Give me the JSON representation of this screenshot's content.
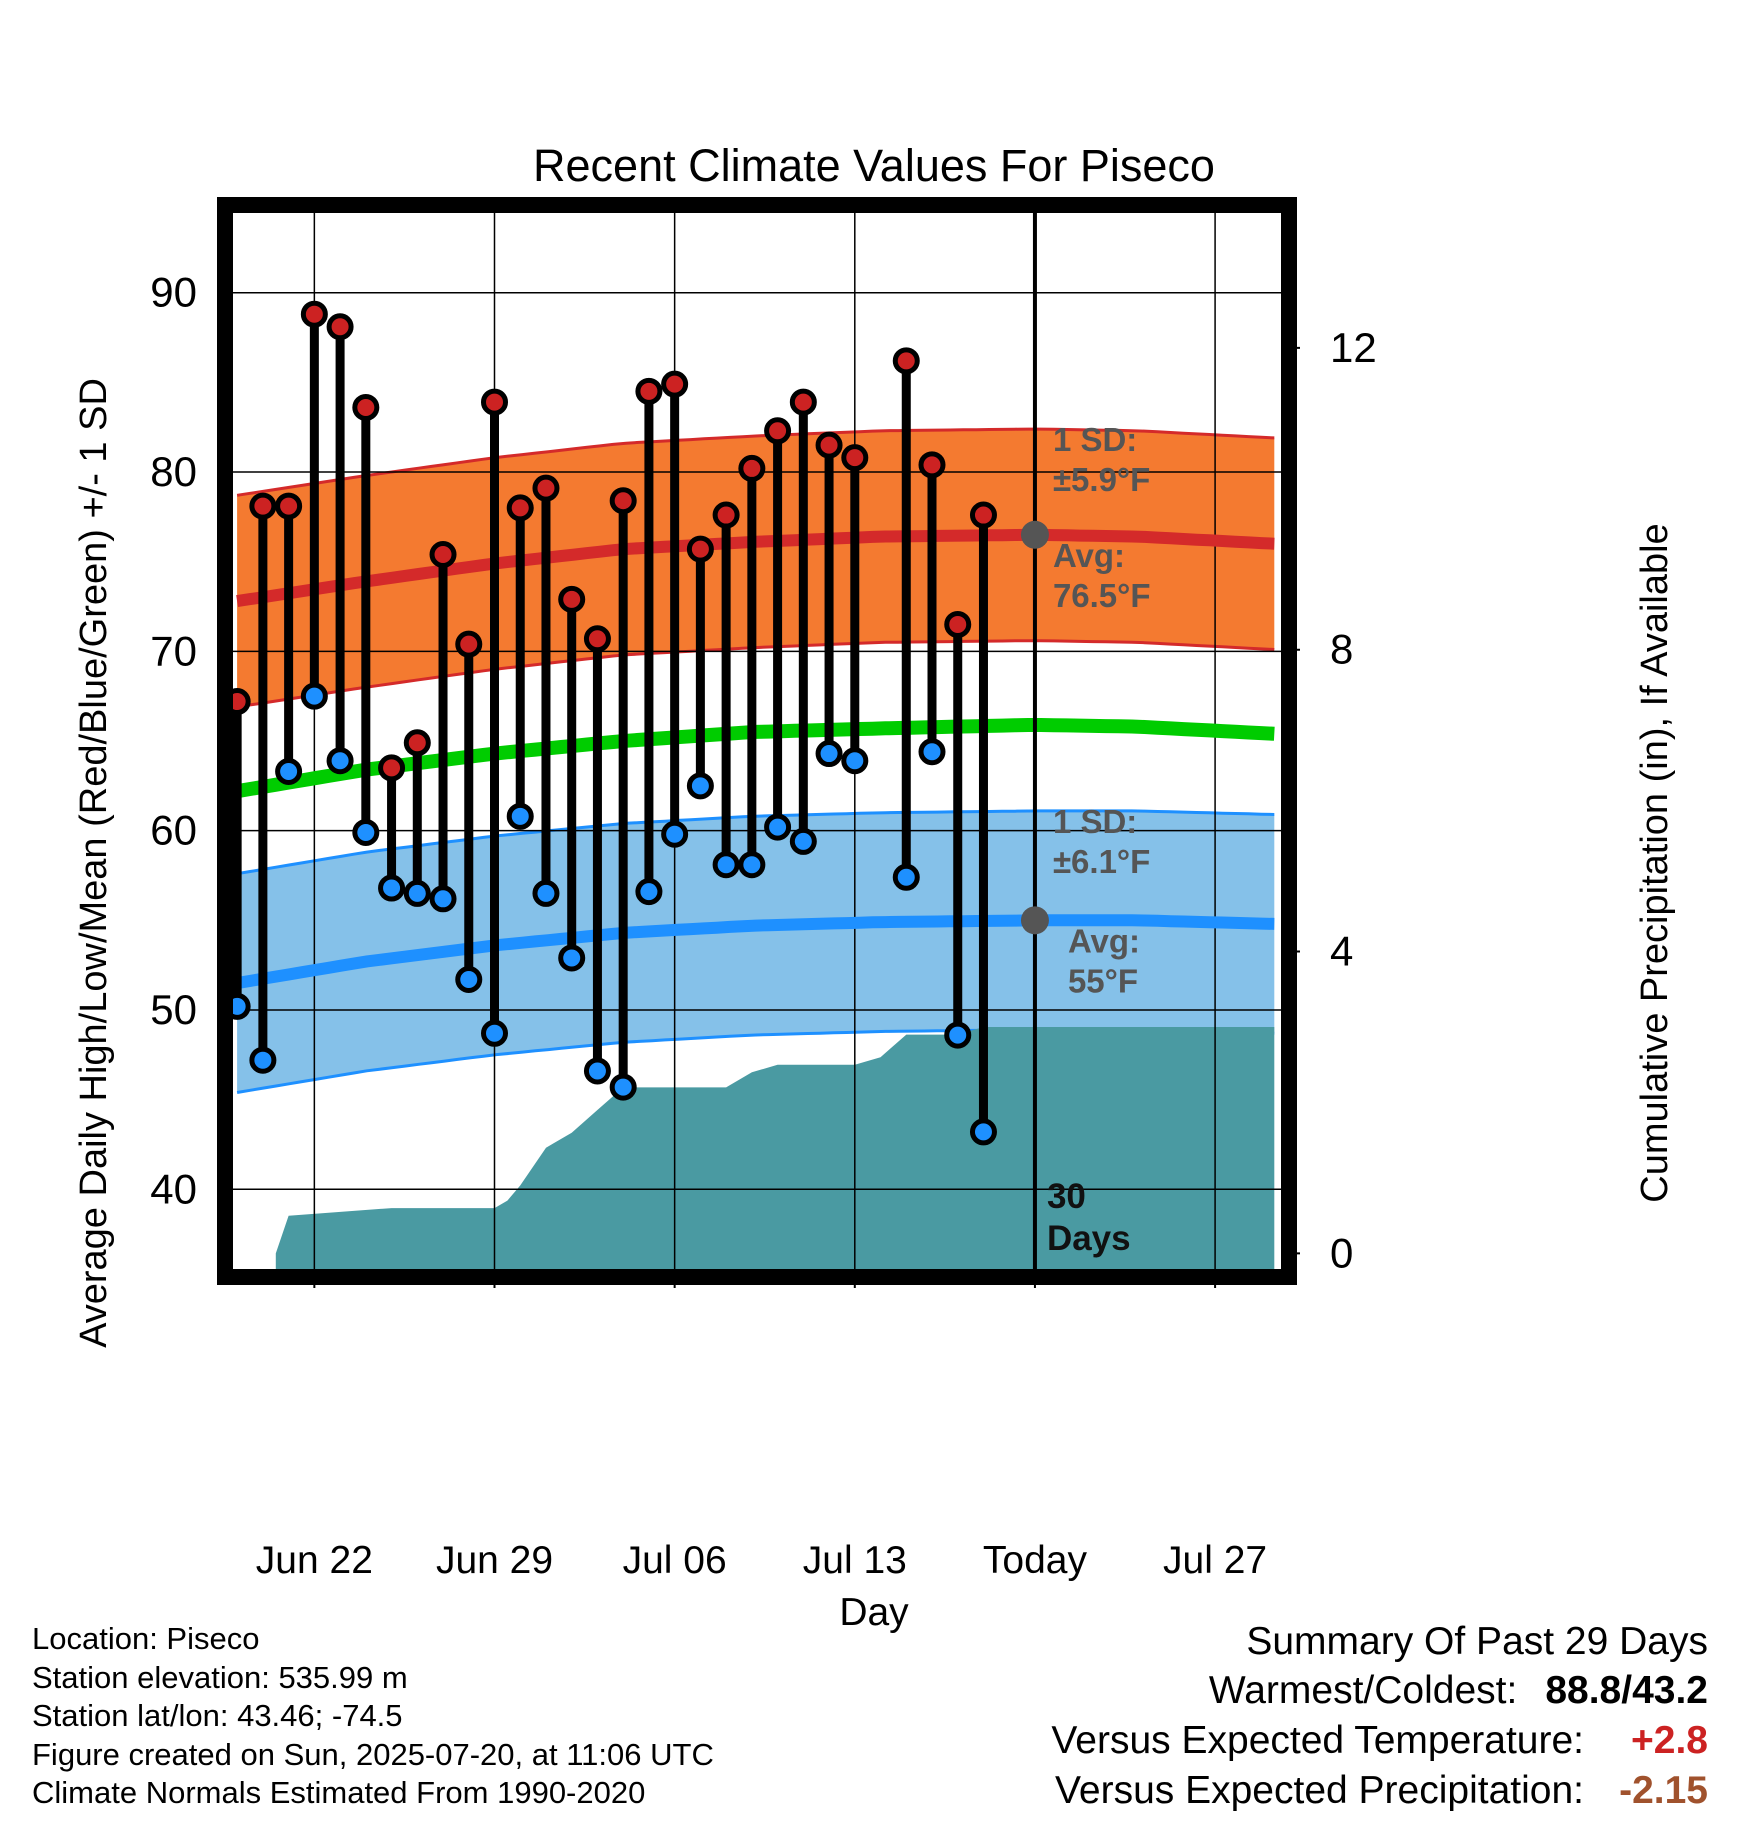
{
  "colors": {
    "high_band": "#f47a30",
    "high_band_edge": "#d42a2a",
    "high_avg": "#d42a2a",
    "low_band": "#85c1e9",
    "low_band_edge": "#1e90ff",
    "low_avg": "#1e90ff",
    "mean_line": "#00cc00",
    "precip": "#4a9aa2",
    "high_dot": "#cc2222",
    "low_dot": "#1e90ff",
    "today_marker": "#555555",
    "annotation_text": "#555555",
    "summary_warm": "#cc2222",
    "summary_precip": "#a0522d"
  },
  "chart_data": {
    "type": "line",
    "title": "Recent Climate Values For Piseco",
    "xlabel": "Day",
    "ylabel": "Average Daily High/Low/Mean (Red/Blue/Green) +/- 1 SD",
    "y2label": "Cumulative Precipitation (in), If Available",
    "x_ticks": [
      {
        "day": 3,
        "label": "Jun 22"
      },
      {
        "day": 10,
        "label": "Jun 29"
      },
      {
        "day": 17,
        "label": "Jul 06"
      },
      {
        "day": 24,
        "label": "Jul 13"
      },
      {
        "day": 31,
        "label": "Today"
      },
      {
        "day": 38,
        "label": "Jul 27"
      }
    ],
    "xlim": [
      -0.2,
      40.6
    ],
    "ylim": [
      35.5,
      94.5
    ],
    "y_ticks": [
      40,
      50,
      60,
      70,
      80,
      90
    ],
    "y2lim": [
      -0.22,
      13.8
    ],
    "y2_ticks": [
      0,
      4,
      8,
      12
    ],
    "today_day": 31,
    "high_avg": {
      "day": [
        0,
        5,
        10,
        15,
        20,
        25,
        31,
        35,
        40.3
      ],
      "value": [
        72.8,
        73.9,
        74.9,
        75.7,
        76.1,
        76.4,
        76.5,
        76.4,
        76.0
      ]
    },
    "high_sd": 5.9,
    "low_avg": {
      "day": [
        0,
        5,
        10,
        15,
        20,
        25,
        31,
        35,
        40.3
      ],
      "value": [
        51.5,
        52.7,
        53.6,
        54.3,
        54.7,
        54.9,
        55.0,
        55.0,
        54.8
      ]
    },
    "low_sd": 6.1,
    "mean_avg": {
      "day": [
        0,
        5,
        10,
        15,
        20,
        25,
        31,
        35,
        40.3
      ],
      "value": [
        62.2,
        63.4,
        64.3,
        65.0,
        65.5,
        65.7,
        65.9,
        65.8,
        65.4
      ]
    },
    "series": [
      {
        "name": "High",
        "values": [
          67.2,
          78.1,
          78.1,
          88.8,
          88.1,
          83.6,
          63.5,
          64.9,
          75.4,
          70.4,
          83.9,
          78.0,
          79.1,
          72.9,
          70.7,
          78.4,
          84.5,
          84.9,
          75.7,
          77.6,
          80.2,
          82.3,
          83.9,
          81.5,
          80.8,
          null,
          86.2,
          80.4,
          71.5,
          77.6
        ]
      },
      {
        "name": "Low",
        "values": [
          50.2,
          47.2,
          63.3,
          67.5,
          63.9,
          59.9,
          56.8,
          56.5,
          56.2,
          51.7,
          48.7,
          60.8,
          56.5,
          52.9,
          46.6,
          45.7,
          56.6,
          59.8,
          62.5,
          58.1,
          58.1,
          60.2,
          59.4,
          64.3,
          63.9,
          null,
          57.4,
          64.4,
          48.6,
          43.2
        ]
      },
      {
        "name": "Cumulative Precipitation",
        "x": [
          1.5,
          2.0,
          6.0,
          10.0,
          10.5,
          11.0,
          12.0,
          13.0,
          14.0,
          15.0,
          16.0,
          17.0,
          18.0,
          19.0,
          20.0,
          21.0,
          22.0,
          23.0,
          24.0,
          25.0,
          26.0,
          27.0,
          28.0,
          29.0,
          40.3
        ],
        "values": [
          0.0,
          0.5,
          0.6,
          0.6,
          0.7,
          0.9,
          1.4,
          1.6,
          1.9,
          2.2,
          2.2,
          2.2,
          2.2,
          2.2,
          2.4,
          2.5,
          2.5,
          2.5,
          2.5,
          2.6,
          2.9,
          2.9,
          2.9,
          3.0,
          3.0
        ]
      }
    ],
    "annotations": {
      "high_sd_label": "1 SD:",
      "high_sd_value": "±5.9°F",
      "high_avg_label": "Avg:",
      "high_avg_value": "76.5°F",
      "low_sd_label": "1 SD:",
      "low_sd_value": "±6.1°F",
      "low_avg_label": "Avg:",
      "low_avg_value": "55°F",
      "days_label_1": "30",
      "days_label_2": "Days"
    }
  },
  "info": {
    "location": "Location: Piseco",
    "elevation": "Station elevation: 535.99 m",
    "latlon": "Station lat/lon: 43.46; -74.5",
    "created": "Figure created on Sun, 2025-07-20, at 11:06 UTC",
    "normals": "Climate Normals Estimated From 1990-2020"
  },
  "summary": {
    "title": "Summary Of Past 29 Days",
    "warm_cold_label": "Warmest/Coldest:",
    "warm_cold_value": "88.8/43.2",
    "temp_label": "Versus Expected Temperature:",
    "temp_value": "+2.8",
    "precip_label": "Versus Expected Precipitation:",
    "precip_value": "-2.15"
  }
}
